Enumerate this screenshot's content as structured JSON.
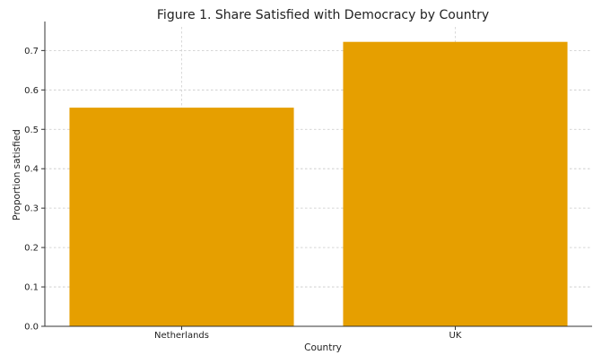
{
  "chart_data": {
    "type": "bar",
    "title": "Figure 1. Share Satisfied with Democracy by Country",
    "xlabel": "Country",
    "ylabel": "Proportion satisfied",
    "categories": [
      "Netherlands",
      "UK"
    ],
    "values": [
      0.555,
      0.722
    ],
    "ylim": [
      0,
      0.76
    ],
    "yticks": [
      "0.0",
      "0.1",
      "0.2",
      "0.3",
      "0.4",
      "0.5",
      "0.6",
      "0.7"
    ],
    "grid": true,
    "bar_color": "#E69F00"
  }
}
